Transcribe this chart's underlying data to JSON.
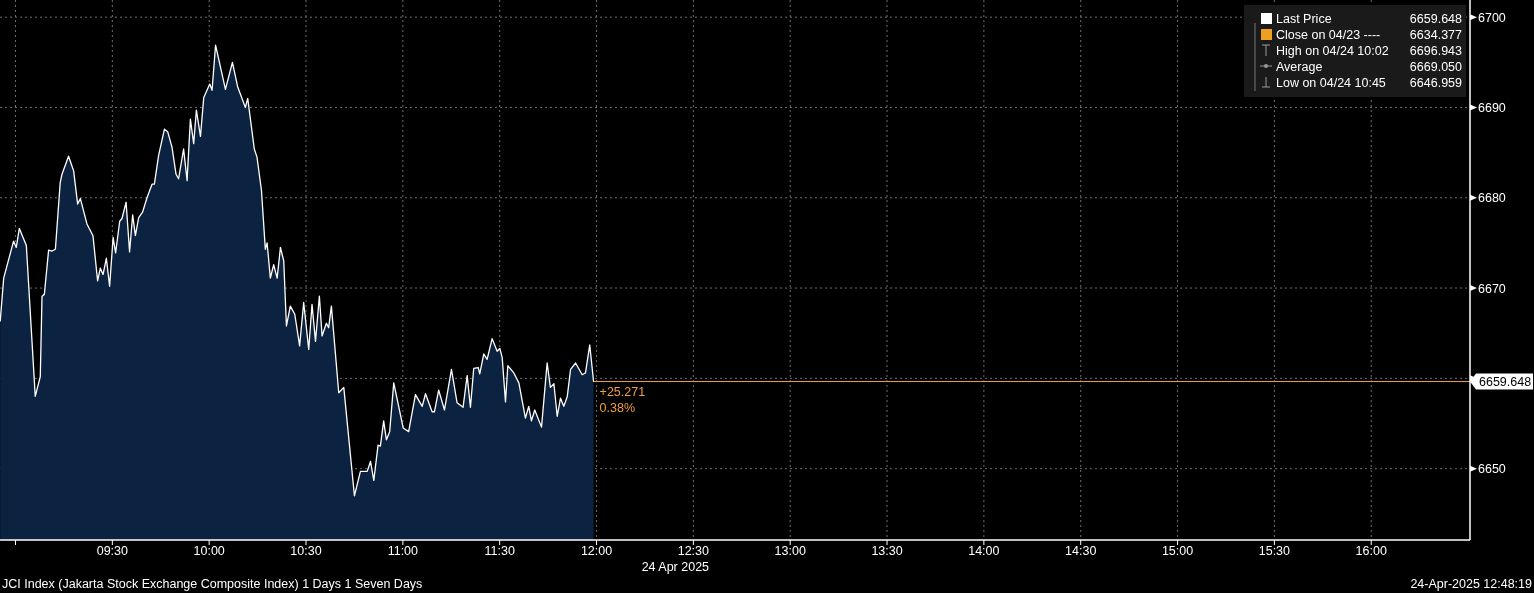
{
  "chart_data": {
    "type": "area",
    "x": [
      8.921,
      8.939,
      8.99,
      9.004,
      9.02,
      9.056,
      9.102,
      9.128,
      9.137,
      9.149,
      9.171,
      9.189,
      9.206,
      9.231,
      9.24,
      9.274,
      9.3,
      9.321,
      9.335,
      9.369,
      9.4,
      9.424,
      9.438,
      9.452,
      9.469,
      9.486,
      9.504,
      9.517,
      9.538,
      9.55,
      9.571,
      9.589,
      9.605,
      9.619,
      9.636,
      9.656,
      9.679,
      9.705,
      9.717,
      9.739,
      9.769,
      9.786,
      9.808,
      9.829,
      9.842,
      9.868,
      9.886,
      9.903,
      9.92,
      9.934,
      9.955,
      9.972,
      10.003,
      10.015,
      10.033,
      10.084,
      10.12,
      10.147,
      10.187,
      10.199,
      10.233,
      10.247,
      10.27,
      10.29,
      10.299,
      10.316,
      10.333,
      10.351,
      10.368,
      10.385,
      10.399,
      10.419,
      10.442,
      10.467,
      10.488,
      10.514,
      10.531,
      10.549,
      10.569,
      10.583,
      10.605,
      10.617,
      10.631,
      10.669,
      10.695,
      10.75,
      10.781,
      10.816,
      10.833,
      10.85,
      10.872,
      10.884,
      10.901,
      10.915,
      10.932,
      10.953,
      11.002,
      11.03,
      11.065,
      11.1,
      11.117,
      11.151,
      11.163,
      11.185,
      11.215,
      11.251,
      11.28,
      11.311,
      11.332,
      11.349,
      11.366,
      11.389,
      11.397,
      11.418,
      11.435,
      11.461,
      11.487,
      11.501,
      11.513,
      11.53,
      11.542,
      11.573,
      11.599,
      11.633,
      11.65,
      11.664,
      11.681,
      11.716,
      11.745,
      11.762,
      11.78,
      11.797,
      11.814,
      11.831,
      11.849,
      11.866,
      11.892,
      11.926,
      11.943,
      11.965,
      11.985
    ],
    "series": [
      {
        "name": "Last Price",
        "color": "#ffffff",
        "values": [
          6666.3,
          6671.1,
          6675.2,
          6674.5,
          6676.6,
          6674.7,
          6658.0,
          6660.2,
          6669.1,
          6669.3,
          6674.2,
          6674.1,
          6674.3,
          6681.7,
          6682.6,
          6684.6,
          6683.0,
          6679.3,
          6679.9,
          6677.1,
          6675.8,
          6670.8,
          6672.2,
          6671.5,
          6673.3,
          6670.2,
          6675.6,
          6673.9,
          6677.4,
          6677.7,
          6679.5,
          6674.0,
          6678.1,
          6675.8,
          6677.8,
          6678.4,
          6680.0,
          6681.5,
          6681.5,
          6684.7,
          6687.6,
          6687.3,
          6685.6,
          6682.6,
          6682.1,
          6685.4,
          6681.9,
          6688.7,
          6686.0,
          6689.7,
          6686.8,
          6691.1,
          6692.6,
          6691.9,
          6696.9,
          6692.0,
          6695.0,
          6692.3,
          6690.0,
          6691.0,
          6685.4,
          6684.5,
          6680.8,
          6674.3,
          6675.0,
          6671.1,
          6672.6,
          6671.1,
          6674.5,
          6673.0,
          6665.8,
          6668.0,
          6667.1,
          6663.6,
          6668.4,
          6663.2,
          6668.2,
          6664.1,
          6669.1,
          6664.7,
          6666.1,
          6665.6,
          6668.0,
          6658.4,
          6659.0,
          6647.0,
          6649.7,
          6649.7,
          6650.8,
          6648.7,
          6652.6,
          6652.5,
          6655.3,
          6653.2,
          6654.1,
          6659.5,
          6654.5,
          6654.1,
          6658.2,
          6656.9,
          6658.3,
          6656.3,
          6656.3,
          6658.7,
          6656.5,
          6661.0,
          6657.3,
          6656.8,
          6660.3,
          6656.8,
          6661.1,
          6661.2,
          6660.5,
          6662.7,
          6662.1,
          6664.4,
          6663.0,
          6663.3,
          6662.3,
          6657.4,
          6661.4,
          6660.6,
          6659.5,
          6655.6,
          6656.9,
          6655.3,
          6656.5,
          6654.6,
          6661.7,
          6659.0,
          6659.4,
          6655.8,
          6657.8,
          6656.9,
          6658.0,
          6661.0,
          6661.7,
          6660.4,
          6660.6,
          6663.7,
          6659.6
        ]
      }
    ],
    "xlim": [
      8.92,
      16.51
    ],
    "xticks": [
      {
        "value": 9,
        "label": null
      },
      {
        "value": 9.5,
        "label": "09:30"
      },
      {
        "value": 10,
        "label": "10:00"
      },
      {
        "value": 10.5,
        "label": "10:30"
      },
      {
        "value": 11,
        "label": "11:00"
      },
      {
        "value": 11.5,
        "label": "11:30"
      },
      {
        "value": 12,
        "label": "12:00"
      },
      {
        "value": 12.5,
        "label": "12:30"
      },
      {
        "value": 13,
        "label": "13:00"
      },
      {
        "value": 13.5,
        "label": "13:30"
      },
      {
        "value": 14,
        "label": "14:00"
      },
      {
        "value": 14.5,
        "label": "14:30"
      },
      {
        "value": 15,
        "label": "15:00"
      },
      {
        "value": 15.5,
        "label": "15:30"
      },
      {
        "value": 16,
        "label": "16:00"
      }
    ],
    "xlabel": "24 Apr 2025",
    "ylim": [
      6642.1,
      6701.9
    ],
    "yticks": [
      6650,
      {
        "value": 6660,
        "label": null
      },
      6670,
      6680,
      6690,
      6700
    ],
    "grid": true,
    "legend": "top right",
    "ref_lines": [
      {
        "axis": "y",
        "value": 6659.648,
        "label": "6659.648",
        "color": "#f0a040"
      }
    ],
    "annotations": [
      {
        "text": "+25.271",
        "x": 11.985,
        "y": 6659.648
      },
      {
        "text": "0.38%",
        "x": 11.985,
        "y": 6659.648
      },
      "6659.648",
      "Close on 04/23 ---- 6634.377",
      "High on 04/24 10:02 6696.943",
      "Average 6669.050",
      "Low on 04/24 10:45 6646.959",
      "JCI Index (Jakarta Stock Exchange Composite Index) 1 Days 1 Seven Days",
      "24-Apr-2025 12:48:19"
    ]
  }
}
